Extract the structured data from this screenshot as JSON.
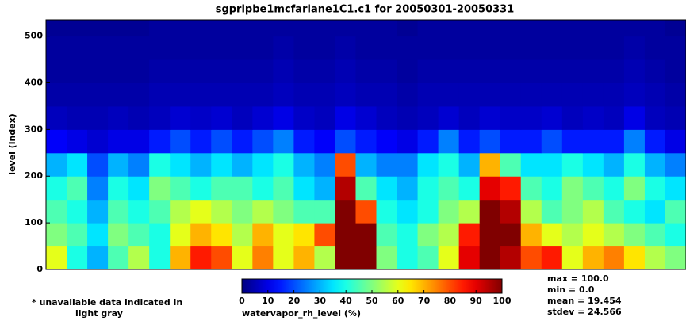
{
  "chart_data": {
    "type": "heatmap",
    "title": "sgpripbe1mcfarlane1C1.c1 for 20050301-20050331",
    "y_label": "level (index)",
    "ylim": [
      0,
      535
    ],
    "yticks": [
      0,
      100,
      200,
      300,
      400,
      500
    ],
    "y_bins": [
      0,
      50,
      100,
      150,
      200,
      250,
      300,
      350,
      400,
      450,
      500,
      535
    ],
    "z": [
      [
        60,
        40,
        30,
        45,
        55,
        40,
        70,
        85,
        80,
        60,
        75,
        60,
        70,
        55,
        100,
        100,
        50,
        40,
        45,
        60,
        90,
        100,
        95,
        80,
        85,
        60,
        70,
        75,
        65,
        55,
        50
      ],
      [
        50,
        45,
        35,
        50,
        45,
        40,
        60,
        70,
        65,
        55,
        70,
        60,
        65,
        80,
        100,
        100,
        45,
        40,
        50,
        55,
        85,
        100,
        100,
        70,
        60,
        55,
        60,
        55,
        50,
        45,
        40
      ],
      [
        45,
        40,
        30,
        45,
        40,
        45,
        55,
        60,
        55,
        50,
        55,
        50,
        45,
        45,
        100,
        80,
        40,
        35,
        40,
        50,
        55,
        100,
        95,
        55,
        45,
        50,
        55,
        45,
        40,
        35,
        45
      ],
      [
        40,
        45,
        25,
        40,
        35,
        50,
        45,
        40,
        45,
        45,
        40,
        45,
        35,
        30,
        95,
        45,
        35,
        30,
        40,
        45,
        40,
        90,
        85,
        45,
        40,
        50,
        45,
        40,
        50,
        40,
        35
      ],
      [
        30,
        35,
        20,
        30,
        25,
        40,
        35,
        30,
        35,
        30,
        35,
        40,
        30,
        25,
        80,
        30,
        25,
        25,
        35,
        40,
        30,
        70,
        45,
        35,
        35,
        40,
        35,
        30,
        40,
        30,
        25
      ],
      [
        12,
        10,
        8,
        10,
        10,
        15,
        20,
        15,
        20,
        15,
        20,
        25,
        15,
        12,
        20,
        15,
        12,
        10,
        15,
        25,
        15,
        20,
        15,
        15,
        20,
        15,
        15,
        15,
        25,
        15,
        10
      ],
      [
        6,
        5,
        5,
        6,
        5,
        6,
        8,
        7,
        8,
        6,
        8,
        10,
        7,
        6,
        10,
        8,
        6,
        5,
        6,
        8,
        6,
        8,
        7,
        7,
        8,
        6,
        7,
        6,
        10,
        6,
        5
      ],
      [
        4,
        4,
        4,
        4,
        4,
        5,
        5,
        5,
        5,
        5,
        5,
        6,
        5,
        5,
        6,
        5,
        5,
        4,
        5,
        5,
        5,
        5,
        5,
        5,
        5,
        5,
        5,
        5,
        6,
        5,
        4
      ],
      [
        3,
        3,
        3,
        3,
        3,
        4,
        4,
        4,
        4,
        4,
        4,
        5,
        4,
        4,
        5,
        4,
        4,
        3,
        4,
        4,
        4,
        4,
        4,
        4,
        4,
        4,
        4,
        4,
        5,
        4,
        3
      ],
      [
        3,
        3,
        3,
        3,
        3,
        3,
        3,
        3,
        3,
        3,
        3,
        4,
        3,
        3,
        4,
        3,
        3,
        3,
        3,
        3,
        3,
        3,
        3,
        3,
        3,
        3,
        3,
        3,
        4,
        3,
        3
      ],
      [
        2,
        2,
        2,
        2,
        2,
        3,
        3,
        3,
        3,
        3,
        3,
        3,
        3,
        3,
        3,
        3,
        3,
        2,
        3,
        3,
        3,
        3,
        3,
        3,
        3,
        3,
        3,
        3,
        3,
        3,
        2
      ]
    ],
    "colormap": "jet",
    "clim": [
      0,
      100
    ],
    "colorbar_ticks": [
      0,
      10,
      20,
      30,
      40,
      50,
      60,
      70,
      80,
      90,
      100
    ],
    "colorbar_label": "watervapor_rh_level (%)",
    "note": [
      "* unavailable data indicated in",
      "light gray"
    ],
    "stats": [
      "max = 100.0",
      "min = 0.0",
      "mean = 19.454",
      "stdev = 24.566"
    ]
  }
}
